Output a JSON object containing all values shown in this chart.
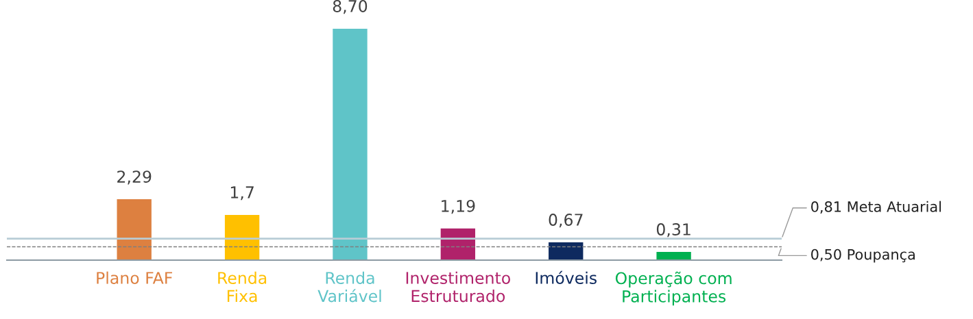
{
  "chart_data": {
    "type": "bar",
    "categories": [
      "Plano FAF",
      "Renda\nFixa",
      "Renda\nVariável",
      "Investimento\nEstruturado",
      "Imóveis",
      "Operação com\nParticipantes"
    ],
    "values": [
      2.29,
      1.7,
      8.7,
      1.19,
      0.67,
      0.31
    ],
    "value_labels": [
      "2,29",
      "1,7",
      "8,70",
      "1,19",
      "0,67",
      "0,31"
    ],
    "colors": [
      "#dd8040",
      "#ffc000",
      "#5fc4c8",
      "#b0226a",
      "#0e2a5f",
      "#00b050"
    ],
    "tick_labels": "x",
    "ref_lines": [
      {
        "axis": "y",
        "value": 0.81,
        "label": "0,81 Meta Atuarial",
        "color": "#b8cdd6",
        "line_style": "solid"
      },
      {
        "axis": "y",
        "value": 0.5,
        "label": "0,50 Poupança",
        "color": "#7f7f7f",
        "line_style": "dashed"
      }
    ],
    "grid": false,
    "legend": false
  }
}
